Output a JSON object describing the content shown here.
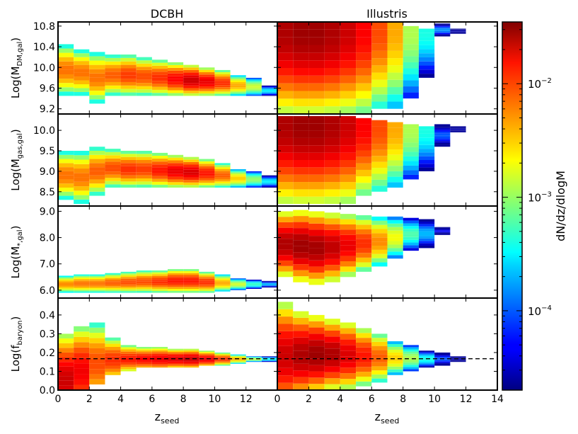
{
  "figure": {
    "column_titles": [
      "DCBH",
      "Illustris"
    ],
    "colorbar_label": "dN/dz/dlogM",
    "colorbar_ticks": [
      {
        "value": 0.0001,
        "base": "10",
        "exp": "−4"
      },
      {
        "value": 0.001,
        "base": "10",
        "exp": "−3"
      },
      {
        "value": 0.01,
        "base": "10",
        "exp": "−2"
      }
    ]
  },
  "chart_data": [
    {
      "type": "heatmap",
      "id": "dm",
      "ylabel": {
        "pre": "Log(M",
        "sub": "DM,gal",
        "post": ")"
      },
      "ylim": [
        9.1,
        10.88
      ],
      "yticks": [
        "9.2",
        "9.6",
        "10.0",
        "10.4",
        "10.8"
      ],
      "xlim": [
        0,
        14
      ],
      "color_scale": "log",
      "panels": {
        "DCBH": [
          {
            "x": 0,
            "ymin": 9.45,
            "ymax": 10.45,
            "peak": 0.006
          },
          {
            "x": 1,
            "ymin": 9.45,
            "ymax": 10.35,
            "peak": 0.006
          },
          {
            "x": 2,
            "ymin": 9.3,
            "ymax": 10.3,
            "peak": 0.006
          },
          {
            "x": 3,
            "ymin": 9.45,
            "ymax": 10.25,
            "peak": 0.007
          },
          {
            "x": 4,
            "ymin": 9.45,
            "ymax": 10.25,
            "peak": 0.009
          },
          {
            "x": 5,
            "ymin": 9.45,
            "ymax": 10.2,
            "peak": 0.008
          },
          {
            "x": 6,
            "ymin": 9.45,
            "ymax": 10.15,
            "peak": 0.01
          },
          {
            "x": 7,
            "ymin": 9.45,
            "ymax": 10.1,
            "peak": 0.014
          },
          {
            "x": 8,
            "ymin": 9.45,
            "ymax": 10.05,
            "peak": 0.02
          },
          {
            "x": 9,
            "ymin": 9.45,
            "ymax": 10.0,
            "peak": 0.016
          },
          {
            "x": 10,
            "ymin": 9.45,
            "ymax": 9.95,
            "peak": 0.01
          },
          {
            "x": 11,
            "ymin": 9.45,
            "ymax": 9.85,
            "peak": 0.004
          },
          {
            "x": 12,
            "ymin": 9.45,
            "ymax": 9.8,
            "peak": 0.0015
          },
          {
            "x": 13,
            "ymin": 9.45,
            "ymax": 9.65,
            "peak": 0.0003
          }
        ],
        "Illustris": [
          {
            "x": 0,
            "ymin": 9.1,
            "ymax": 10.88,
            "peak": 0.025,
            "top": true
          },
          {
            "x": 1,
            "ymin": 9.1,
            "ymax": 10.88,
            "peak": 0.028,
            "top": true
          },
          {
            "x": 2,
            "ymin": 9.1,
            "ymax": 10.88,
            "peak": 0.028,
            "top": true
          },
          {
            "x": 3,
            "ymin": 9.1,
            "ymax": 10.88,
            "peak": 0.025,
            "top": true
          },
          {
            "x": 4,
            "ymin": 9.1,
            "ymax": 10.88,
            "peak": 0.02,
            "top": true
          },
          {
            "x": 5,
            "ymin": 9.1,
            "ymax": 10.88,
            "peak": 0.014,
            "top": true
          },
          {
            "x": 6,
            "ymin": 9.2,
            "ymax": 10.88,
            "peak": 0.008,
            "top": true
          },
          {
            "x": 7,
            "ymin": 9.2,
            "ymax": 10.88,
            "peak": 0.004,
            "top": true
          },
          {
            "x": 8,
            "ymin": 9.4,
            "ymax": 10.8,
            "peak": 0.0012,
            "top": true
          },
          {
            "x": 9,
            "ymin": 9.8,
            "ymax": 10.75,
            "peak": 0.0004,
            "top": true
          },
          {
            "x": 10,
            "ymin": 10.6,
            "ymax": 10.85,
            "peak": 0.00015
          },
          {
            "x": 11,
            "ymin": 10.65,
            "ymax": 10.75,
            "peak": 3e-05
          }
        ]
      }
    },
    {
      "type": "heatmap",
      "id": "gas",
      "ylabel": {
        "pre": "Log(M",
        "sub": "gas,gal",
        "post": ")"
      },
      "ylim": [
        8.15,
        10.4
      ],
      "yticks": [
        "8.5",
        "9.0",
        "9.5",
        "10.0"
      ],
      "xlim": [
        0,
        14
      ],
      "color_scale": "log",
      "panels": {
        "DCBH": [
          {
            "x": 0,
            "ymin": 8.3,
            "ymax": 9.5,
            "peak": 0.006
          },
          {
            "x": 1,
            "ymin": 8.2,
            "ymax": 9.5,
            "peak": 0.006
          },
          {
            "x": 2,
            "ymin": 8.4,
            "ymax": 9.6,
            "peak": 0.007
          },
          {
            "x": 3,
            "ymin": 8.6,
            "ymax": 9.55,
            "peak": 0.008
          },
          {
            "x": 4,
            "ymin": 8.6,
            "ymax": 9.5,
            "peak": 0.01
          },
          {
            "x": 5,
            "ymin": 8.6,
            "ymax": 9.5,
            "peak": 0.009
          },
          {
            "x": 6,
            "ymin": 8.6,
            "ymax": 9.45,
            "peak": 0.012
          },
          {
            "x": 7,
            "ymin": 8.6,
            "ymax": 9.4,
            "peak": 0.016
          },
          {
            "x": 8,
            "ymin": 8.6,
            "ymax": 9.35,
            "peak": 0.018
          },
          {
            "x": 9,
            "ymin": 8.6,
            "ymax": 9.3,
            "peak": 0.012
          },
          {
            "x": 10,
            "ymin": 8.6,
            "ymax": 9.2,
            "peak": 0.007
          },
          {
            "x": 11,
            "ymin": 8.6,
            "ymax": 9.05,
            "peak": 0.003
          },
          {
            "x": 12,
            "ymin": 8.6,
            "ymax": 9.0,
            "peak": 0.001
          },
          {
            "x": 13,
            "ymin": 8.6,
            "ymax": 8.9,
            "peak": 0.0003
          }
        ],
        "Illustris": [
          {
            "x": 0,
            "ymin": 8.2,
            "ymax": 10.35,
            "peak": 0.025,
            "top": true
          },
          {
            "x": 1,
            "ymin": 8.2,
            "ymax": 10.35,
            "peak": 0.028,
            "top": true
          },
          {
            "x": 2,
            "ymin": 8.2,
            "ymax": 10.35,
            "peak": 0.028,
            "top": true
          },
          {
            "x": 3,
            "ymin": 8.2,
            "ymax": 10.35,
            "peak": 0.025,
            "top": true
          },
          {
            "x": 4,
            "ymin": 8.2,
            "ymax": 10.35,
            "peak": 0.02,
            "top": true
          },
          {
            "x": 5,
            "ymin": 8.4,
            "ymax": 10.3,
            "peak": 0.014,
            "top": true
          },
          {
            "x": 6,
            "ymin": 8.5,
            "ymax": 10.25,
            "peak": 0.008,
            "top": true
          },
          {
            "x": 7,
            "ymin": 8.6,
            "ymax": 10.2,
            "peak": 0.004,
            "top": true
          },
          {
            "x": 8,
            "ymin": 8.8,
            "ymax": 10.15,
            "peak": 0.0012,
            "top": true
          },
          {
            "x": 9,
            "ymin": 9.0,
            "ymax": 10.1,
            "peak": 0.0004,
            "top": true
          },
          {
            "x": 10,
            "ymin": 9.6,
            "ymax": 10.15,
            "peak": 0.0001
          },
          {
            "x": 11,
            "ymin": 9.95,
            "ymax": 10.1,
            "peak": 3e-05
          }
        ]
      }
    },
    {
      "type": "heatmap",
      "id": "stellar",
      "ylabel": {
        "pre": "Log(M",
        "sub": "*,gal",
        "post": ")"
      },
      "ylim": [
        5.7,
        9.2
      ],
      "yticks": [
        "6.0",
        "7.0",
        "8.0",
        "9.0"
      ],
      "xlim": [
        0,
        14
      ],
      "color_scale": "log",
      "panels": {
        "DCBH": [
          {
            "x": 0,
            "ymin": 5.9,
            "ymax": 6.55,
            "peak": 0.005
          },
          {
            "x": 1,
            "ymin": 5.9,
            "ymax": 6.6,
            "peak": 0.006
          },
          {
            "x": 2,
            "ymin": 5.9,
            "ymax": 6.6,
            "peak": 0.006
          },
          {
            "x": 3,
            "ymin": 5.9,
            "ymax": 6.65,
            "peak": 0.007
          },
          {
            "x": 4,
            "ymin": 5.9,
            "ymax": 6.7,
            "peak": 0.008
          },
          {
            "x": 5,
            "ymin": 5.9,
            "ymax": 6.75,
            "peak": 0.008
          },
          {
            "x": 6,
            "ymin": 5.9,
            "ymax": 6.75,
            "peak": 0.01
          },
          {
            "x": 7,
            "ymin": 5.9,
            "ymax": 6.8,
            "peak": 0.012
          },
          {
            "x": 8,
            "ymin": 5.9,
            "ymax": 6.8,
            "peak": 0.012
          },
          {
            "x": 9,
            "ymin": 5.9,
            "ymax": 6.7,
            "peak": 0.01
          },
          {
            "x": 10,
            "ymin": 5.95,
            "ymax": 6.6,
            "peak": 0.004
          },
          {
            "x": 11,
            "ymin": 6.0,
            "ymax": 6.45,
            "peak": 0.0015
          },
          {
            "x": 12,
            "ymin": 6.05,
            "ymax": 6.4,
            "peak": 0.0005
          },
          {
            "x": 13,
            "ymin": 6.1,
            "ymax": 6.35,
            "peak": 0.0002
          }
        ],
        "Illustris": [
          {
            "x": 0,
            "ymin": 6.5,
            "ymax": 9.0,
            "peak": 0.025
          },
          {
            "x": 1,
            "ymin": 6.3,
            "ymax": 9.05,
            "peak": 0.028
          },
          {
            "x": 2,
            "ymin": 6.2,
            "ymax": 9.0,
            "peak": 0.027
          },
          {
            "x": 3,
            "ymin": 6.3,
            "ymax": 8.95,
            "peak": 0.022
          },
          {
            "x": 4,
            "ymin": 6.5,
            "ymax": 8.9,
            "peak": 0.016
          },
          {
            "x": 5,
            "ymin": 6.7,
            "ymax": 8.85,
            "peak": 0.01
          },
          {
            "x": 6,
            "ymin": 6.9,
            "ymax": 8.8,
            "peak": 0.005
          },
          {
            "x": 7,
            "ymin": 7.2,
            "ymax": 8.8,
            "peak": 0.002
          },
          {
            "x": 8,
            "ymin": 7.5,
            "ymax": 8.75,
            "peak": 0.0006
          },
          {
            "x": 9,
            "ymin": 7.6,
            "ymax": 8.7,
            "peak": 0.0002
          },
          {
            "x": 10,
            "ymin": 8.1,
            "ymax": 8.4,
            "peak": 5e-05
          }
        ]
      }
    },
    {
      "type": "heatmap",
      "id": "baryon",
      "ylabel": {
        "pre": "Log(f",
        "sub": "baryon",
        "post": ")"
      },
      "ylim": [
        0.0,
        0.49
      ],
      "yticks": [
        "0.0",
        "0.1",
        "0.2",
        "0.3",
        "0.4"
      ],
      "xlim": [
        0,
        14
      ],
      "color_scale": "log",
      "reference_line": 0.167,
      "panels": {
        "DCBH": [
          {
            "x": 0,
            "ymin": 0.0,
            "ymax": 0.3,
            "peak": 0.02,
            "center": 0.05
          },
          {
            "x": 1,
            "ymin": 0.0,
            "ymax": 0.34,
            "peak": 0.015,
            "center": 0.1
          },
          {
            "x": 2,
            "ymin": 0.03,
            "ymax": 0.36,
            "peak": 0.008,
            "center": 0.14
          },
          {
            "x": 3,
            "ymin": 0.08,
            "ymax": 0.28,
            "peak": 0.01,
            "center": 0.16
          },
          {
            "x": 4,
            "ymin": 0.1,
            "ymax": 0.24,
            "peak": 0.012,
            "center": 0.165
          },
          {
            "x": 5,
            "ymin": 0.12,
            "ymax": 0.23,
            "peak": 0.014,
            "center": 0.165
          },
          {
            "x": 6,
            "ymin": 0.12,
            "ymax": 0.23,
            "peak": 0.016,
            "center": 0.165
          },
          {
            "x": 7,
            "ymin": 0.12,
            "ymax": 0.22,
            "peak": 0.018,
            "center": 0.165
          },
          {
            "x": 8,
            "ymin": 0.12,
            "ymax": 0.22,
            "peak": 0.02,
            "center": 0.165
          },
          {
            "x": 9,
            "ymin": 0.13,
            "ymax": 0.21,
            "peak": 0.016,
            "center": 0.165
          },
          {
            "x": 10,
            "ymin": 0.13,
            "ymax": 0.2,
            "peak": 0.01,
            "center": 0.165
          },
          {
            "x": 11,
            "ymin": 0.14,
            "ymax": 0.19,
            "peak": 0.004,
            "center": 0.165
          },
          {
            "x": 12,
            "ymin": 0.15,
            "ymax": 0.18,
            "peak": 0.0015,
            "center": 0.165
          },
          {
            "x": 13,
            "ymin": 0.15,
            "ymax": 0.18,
            "peak": 0.0004,
            "center": 0.165
          }
        ],
        "Illustris": [
          {
            "x": 0,
            "ymin": 0.0,
            "ymax": 0.47,
            "peak": 0.02,
            "center": 0.18
          },
          {
            "x": 1,
            "ymin": 0.0,
            "ymax": 0.42,
            "peak": 0.025,
            "center": 0.185
          },
          {
            "x": 2,
            "ymin": 0.0,
            "ymax": 0.4,
            "peak": 0.028,
            "center": 0.19
          },
          {
            "x": 3,
            "ymin": 0.0,
            "ymax": 0.38,
            "peak": 0.025,
            "center": 0.19
          },
          {
            "x": 4,
            "ymin": 0.0,
            "ymax": 0.36,
            "peak": 0.018,
            "center": 0.185
          },
          {
            "x": 5,
            "ymin": 0.02,
            "ymax": 0.33,
            "peak": 0.012,
            "center": 0.18
          },
          {
            "x": 6,
            "ymin": 0.04,
            "ymax": 0.3,
            "peak": 0.007,
            "center": 0.175
          },
          {
            "x": 7,
            "ymin": 0.08,
            "ymax": 0.26,
            "peak": 0.003,
            "center": 0.17
          },
          {
            "x": 8,
            "ymin": 0.1,
            "ymax": 0.24,
            "peak": 0.0012,
            "center": 0.17
          },
          {
            "x": 9,
            "ymin": 0.12,
            "ymax": 0.21,
            "peak": 0.0004,
            "center": 0.165
          },
          {
            "x": 10,
            "ymin": 0.13,
            "ymax": 0.2,
            "peak": 0.0001,
            "center": 0.165
          },
          {
            "x": 11,
            "ymin": 0.15,
            "ymax": 0.18,
            "peak": 3e-05,
            "center": 0.165
          }
        ]
      }
    }
  ],
  "xaxis": {
    "label_pre": "z",
    "label_sub": "seed",
    "ticks_left": [
      "0",
      "2",
      "4",
      "6",
      "8",
      "10",
      "12"
    ],
    "ticks_right": [
      "0",
      "2",
      "4",
      "6",
      "8",
      "10",
      "12",
      "14"
    ]
  }
}
